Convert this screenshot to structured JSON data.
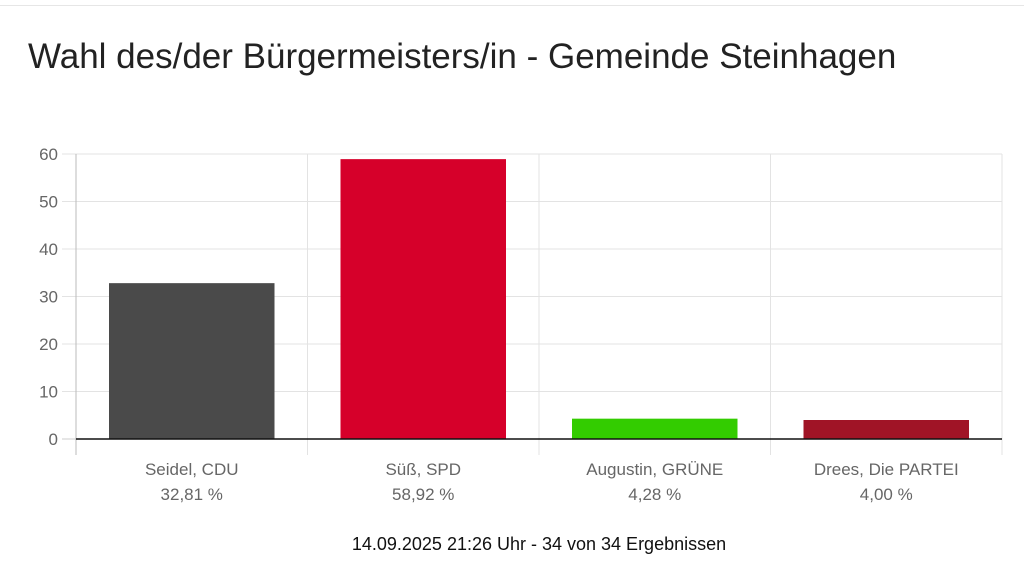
{
  "title": "Wahl des/der Bürgermeisters/in - Gemeinde Steinhagen",
  "footer": "14.09.2025 21:26 Uhr - 34 von 34 Ergebnissen",
  "chart_data": {
    "type": "bar",
    "title": "Wahl des/der Bürgermeisters/in - Gemeinde Steinhagen",
    "categories": [
      "Seidel, CDU",
      "Süß, SPD",
      "Augustin, GRÜNE",
      "Drees, Die PARTEI"
    ],
    "value_labels": [
      "32,81 %",
      "58,92 %",
      "4,28 %",
      "4,00 %"
    ],
    "values": [
      32.81,
      58.92,
      4.28,
      4.0
    ],
    "colors": [
      "#4a4a4a",
      "#d6002a",
      "#33cc00",
      "#a01426"
    ],
    "ylim": [
      0,
      60
    ],
    "yticks": [
      "0",
      "10",
      "20",
      "30",
      "40",
      "50",
      "60"
    ],
    "xlabel": "",
    "ylabel": "",
    "grid": true,
    "legend": "none"
  }
}
